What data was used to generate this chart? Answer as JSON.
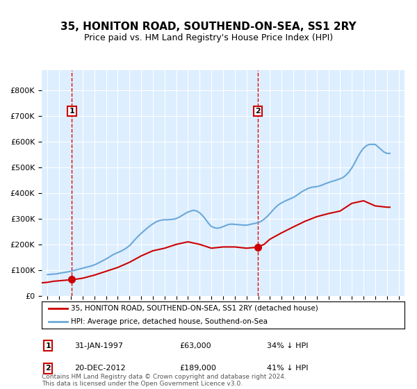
{
  "title": "35, HONITON ROAD, SOUTHEND-ON-SEA, SS1 2RY",
  "subtitle": "Price paid vs. HM Land Registry's House Price Index (HPI)",
  "legend_line1": "35, HONITON ROAD, SOUTHEND-ON-SEA, SS1 2RY (detached house)",
  "legend_line2": "HPI: Average price, detached house, Southend-on-Sea",
  "annotation1": {
    "label": "1",
    "date_x": 1997.08,
    "price": 63000,
    "text_date": "31-JAN-1997",
    "text_price": "£63,000",
    "text_pct": "34% ↓ HPI"
  },
  "annotation2": {
    "label": "2",
    "date_x": 2012.97,
    "price": 189000,
    "text_date": "20-DEC-2012",
    "text_price": "£189,000",
    "text_pct": "41% ↓ HPI"
  },
  "footer": "Contains HM Land Registry data © Crown copyright and database right 2024.\nThis data is licensed under the Open Government Licence v3.0.",
  "hpi_color": "#6aa8d8",
  "price_color": "#cc0000",
  "annotation_color": "#cc0000",
  "bg_color": "#ddeeff",
  "ylim": [
    0,
    880000
  ],
  "xlim": [
    1994.5,
    2025.5
  ],
  "hpi_data_x": [
    1995,
    1995.25,
    1995.5,
    1995.75,
    1996,
    1996.25,
    1996.5,
    1996.75,
    1997,
    1997.25,
    1997.5,
    1997.75,
    1998,
    1998.25,
    1998.5,
    1998.75,
    1999,
    1999.25,
    1999.5,
    1999.75,
    2000,
    2000.25,
    2000.5,
    2000.75,
    2001,
    2001.25,
    2001.5,
    2001.75,
    2002,
    2002.25,
    2002.5,
    2002.75,
    2003,
    2003.25,
    2003.5,
    2003.75,
    2004,
    2004.25,
    2004.5,
    2004.75,
    2005,
    2005.25,
    2005.5,
    2005.75,
    2006,
    2006.25,
    2006.5,
    2006.75,
    2007,
    2007.25,
    2007.5,
    2007.75,
    2008,
    2008.25,
    2008.5,
    2008.75,
    2009,
    2009.25,
    2009.5,
    2009.75,
    2010,
    2010.25,
    2010.5,
    2010.75,
    2011,
    2011.25,
    2011.5,
    2011.75,
    2012,
    2012.25,
    2012.5,
    2012.75,
    2013,
    2013.25,
    2013.5,
    2013.75,
    2014,
    2014.25,
    2014.5,
    2014.75,
    2015,
    2015.25,
    2015.5,
    2015.75,
    2016,
    2016.25,
    2016.5,
    2016.75,
    2017,
    2017.25,
    2017.5,
    2017.75,
    2018,
    2018.25,
    2018.5,
    2018.75,
    2019,
    2019.25,
    2019.5,
    2019.75,
    2020,
    2020.25,
    2020.5,
    2020.75,
    2021,
    2021.25,
    2021.5,
    2021.75,
    2022,
    2022.25,
    2022.5,
    2022.75,
    2023,
    2023.25,
    2023.5,
    2023.75,
    2024,
    2024.25
  ],
  "hpi_data_y": [
    82000,
    83000,
    84000,
    85000,
    87000,
    89000,
    91000,
    93000,
    95000,
    98000,
    101000,
    104000,
    107000,
    110000,
    113000,
    116000,
    120000,
    125000,
    131000,
    137000,
    143000,
    150000,
    157000,
    163000,
    168000,
    173000,
    179000,
    186000,
    195000,
    207000,
    220000,
    232000,
    243000,
    253000,
    263000,
    272000,
    280000,
    287000,
    292000,
    295000,
    296000,
    296000,
    297000,
    298000,
    301000,
    306000,
    313000,
    320000,
    326000,
    330000,
    333000,
    330000,
    323000,
    312000,
    298000,
    282000,
    270000,
    265000,
    263000,
    265000,
    269000,
    274000,
    278000,
    279000,
    278000,
    277000,
    276000,
    275000,
    275000,
    277000,
    280000,
    282000,
    285000,
    290000,
    298000,
    308000,
    320000,
    333000,
    345000,
    355000,
    362000,
    368000,
    373000,
    378000,
    383000,
    390000,
    398000,
    406000,
    412000,
    418000,
    422000,
    424000,
    425000,
    428000,
    432000,
    437000,
    441000,
    445000,
    448000,
    452000,
    456000,
    461000,
    470000,
    482000,
    498000,
    518000,
    540000,
    560000,
    575000,
    585000,
    590000,
    590000,
    590000,
    580000,
    570000,
    560000,
    555000,
    555000
  ],
  "price_data_x": [
    1994.5,
    1995.0,
    1995.25,
    1995.5,
    1995.75,
    1996.0,
    1996.25,
    1996.5,
    1996.75,
    1997.0,
    1997.25,
    1998.0,
    1999.0,
    2000.0,
    2001.0,
    2002.0,
    2003.0,
    2004.0,
    2005.0,
    2006.0,
    2007.0,
    2008.0,
    2009.0,
    2010.0,
    2011.0,
    2012.0,
    2012.97,
    2013.5,
    2014.0,
    2015.0,
    2016.0,
    2017.0,
    2018.0,
    2019.0,
    2020.0,
    2021.0,
    2022.0,
    2023.0,
    2024.0,
    2024.25
  ],
  "price_data_y": [
    50000,
    52000,
    54000,
    56000,
    57000,
    58000,
    59000,
    60000,
    61000,
    62000,
    63000,
    68000,
    80000,
    95000,
    110000,
    130000,
    155000,
    175000,
    185000,
    200000,
    210000,
    200000,
    185000,
    190000,
    190000,
    185000,
    189000,
    200000,
    220000,
    245000,
    268000,
    290000,
    308000,
    320000,
    330000,
    360000,
    370000,
    350000,
    345000,
    345000
  ]
}
